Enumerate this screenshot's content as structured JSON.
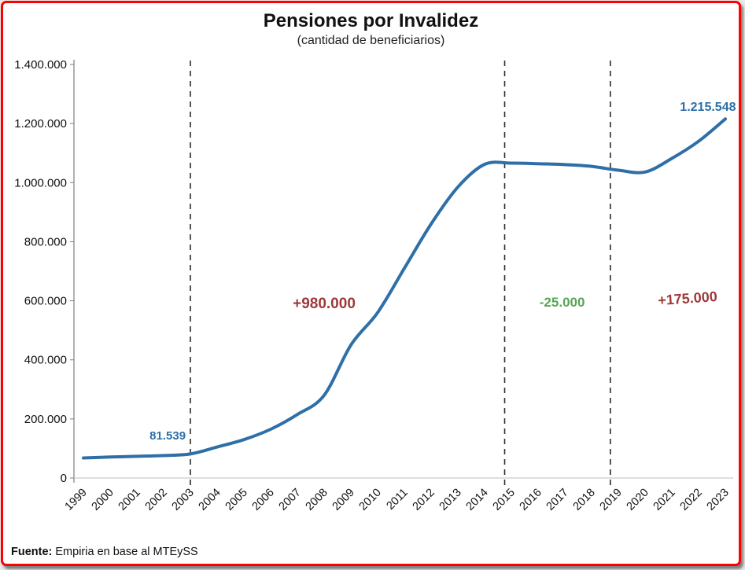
{
  "header": {
    "title": "Pensiones por Invalidez",
    "subtitle": "(cantidad de beneficiarios)"
  },
  "footer": {
    "label": "Fuente:",
    "text": " Empiria en base al MTEySS"
  },
  "chart_data": {
    "type": "line",
    "title": "Pensiones por Invalidez",
    "subtitle": "(cantidad de beneficiarios)",
    "x": [
      1999,
      2000,
      2001,
      2002,
      2003,
      2004,
      2005,
      2006,
      2007,
      2008,
      2009,
      2010,
      2011,
      2012,
      2013,
      2014,
      2015,
      2016,
      2017,
      2018,
      2019,
      2020,
      2021,
      2022,
      2023
    ],
    "values": [
      68000,
      71000,
      73500,
      76000,
      81539,
      105000,
      130000,
      165000,
      215000,
      280000,
      450000,
      560000,
      710000,
      860000,
      985000,
      1062000,
      1066000,
      1064000,
      1061000,
      1055000,
      1042000,
      1036000,
      1082000,
      1140000,
      1215548
    ],
    "ylim": [
      0,
      1400000
    ],
    "yticks": [
      0,
      200000,
      400000,
      600000,
      800000,
      1000000,
      1200000,
      1400000
    ],
    "ytick_labels": [
      "0",
      "200.000",
      "400.000",
      "600.000",
      "800.000",
      "1.000.000",
      "1.200.000",
      "1.400.000"
    ],
    "line_color": "#2e6fa8",
    "axis_color": "#7f7f7f",
    "dashed_line_color": "#2b2b2b",
    "dashed_line_years": [
      2003,
      2014.75,
      2018.7
    ],
    "legend": "none",
    "grid": false,
    "annotations": [
      {
        "text": "81.539",
        "year": 2002.15,
        "value": 130000,
        "color": "#2e6fa8",
        "size": 15,
        "anchor": "middle"
      },
      {
        "text": "+980.000",
        "year": 2008.0,
        "value": 575000,
        "color": "#9e3939",
        "size": 19,
        "anchor": "middle"
      },
      {
        "text": "-25.000",
        "year": 2016.9,
        "value": 580000,
        "color": "#57a657",
        "size": 17,
        "anchor": "middle"
      },
      {
        "text": "+175.000",
        "year": 2021.6,
        "value": 592000,
        "color": "#9e3939",
        "size": 18,
        "anchor": "middle",
        "rotate": -4
      },
      {
        "text": "1.215.548",
        "year": 2022.35,
        "value": 1243000,
        "color": "#2e6fa8",
        "size": 16,
        "anchor": "middle"
      }
    ],
    "source_note": "Fuente: Empiria en base al MTEySS"
  }
}
